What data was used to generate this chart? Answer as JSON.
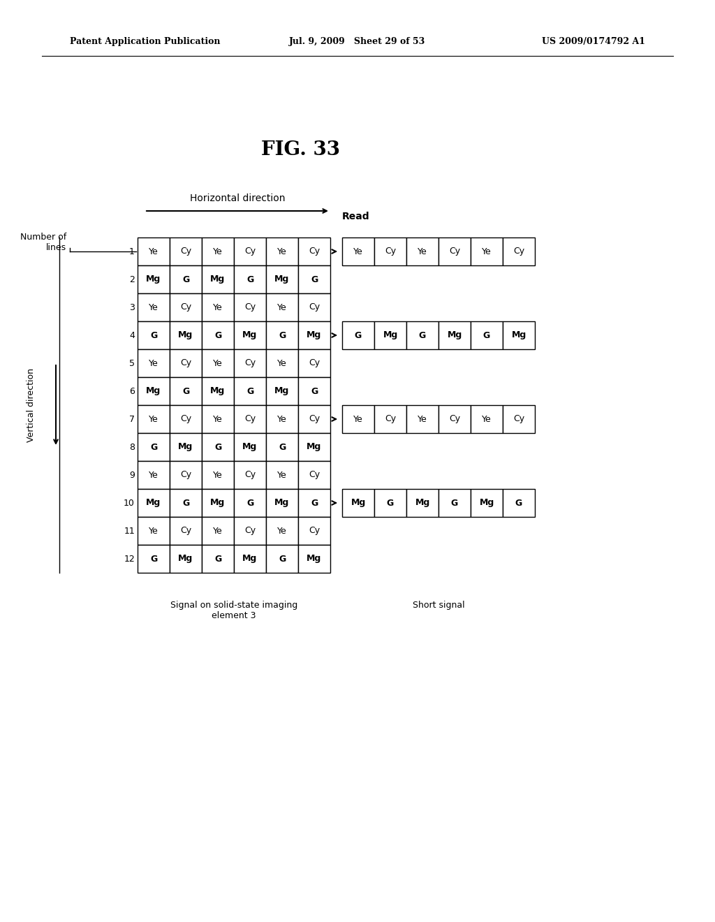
{
  "title": "FIG. 33",
  "header_left": "Patent Application Publication",
  "header_mid": "Jul. 9, 2009   Sheet 29 of 53",
  "header_right": "US 2009/0174792 A1",
  "horiz_direction_label": "Horizontal direction",
  "vert_direction_label": "Vertical direction",
  "number_of_lines_label": "Number of\nlines",
  "read_label": "Read",
  "short_signal_label": "Short signal",
  "signal_label": "Signal on solid-state imaging\nelement 3",
  "grid_rows": 12,
  "grid_cols": 6,
  "grid_data": [
    [
      "Ye",
      "Cy",
      "Ye",
      "Cy",
      "Ye",
      "Cy"
    ],
    [
      "Mg",
      "G",
      "Mg",
      "G",
      "Mg",
      "G"
    ],
    [
      "Ye",
      "Cy",
      "Ye",
      "Cy",
      "Ye",
      "Cy"
    ],
    [
      "G",
      "Mg",
      "G",
      "Mg",
      "G",
      "Mg"
    ],
    [
      "Ye",
      "Cy",
      "Ye",
      "Cy",
      "Ye",
      "Cy"
    ],
    [
      "Mg",
      "G",
      "Mg",
      "G",
      "Mg",
      "G"
    ],
    [
      "Ye",
      "Cy",
      "Ye",
      "Cy",
      "Ye",
      "Cy"
    ],
    [
      "G",
      "Mg",
      "G",
      "Mg",
      "G",
      "Mg"
    ],
    [
      "Ye",
      "Cy",
      "Ye",
      "Cy",
      "Ye",
      "Cy"
    ],
    [
      "Mg",
      "G",
      "Mg",
      "G",
      "Mg",
      "G"
    ],
    [
      "Ye",
      "Cy",
      "Ye",
      "Cy",
      "Ye",
      "Cy"
    ],
    [
      "G",
      "Mg",
      "G",
      "Mg",
      "G",
      "Mg"
    ]
  ],
  "arrow_rows_0indexed": [
    0,
    3,
    6,
    9
  ],
  "read_data": [
    [
      "Ye",
      "Cy",
      "Ye",
      "Cy",
      "Ye",
      "Cy"
    ],
    [
      "G",
      "Mg",
      "G",
      "Mg",
      "G",
      "Mg"
    ],
    [
      "Ye",
      "Cy",
      "Ye",
      "Cy",
      "Ye",
      "Cy"
    ],
    [
      "Mg",
      "G",
      "Mg",
      "G",
      "Mg",
      "G"
    ]
  ],
  "bg_color": "#ffffff",
  "text_color": "#000000"
}
